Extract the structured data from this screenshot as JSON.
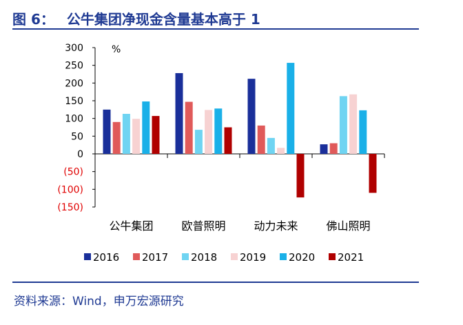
{
  "figure": {
    "label": "图 6：",
    "title": "公牛集团净现金含量基本高于 1",
    "source": "资料来源：Wind，申万宏源研究"
  },
  "colors": {
    "rule": "#1f3a93",
    "negative_tick": "#e00000",
    "series": [
      "#1a2f9a",
      "#e05a5a",
      "#6fd4f2",
      "#f7d2d2",
      "#1ab0e8",
      "#b00000"
    ]
  },
  "chart_data": {
    "type": "bar",
    "categories": [
      "公牛集团",
      "欧普照明",
      "动力未来",
      "佛山照明"
    ],
    "series": [
      {
        "name": "2016",
        "values": [
          125,
          228,
          212,
          27
        ]
      },
      {
        "name": "2017",
        "values": [
          90,
          147,
          80,
          30
        ]
      },
      {
        "name": "2018",
        "values": [
          113,
          68,
          45,
          163
        ]
      },
      {
        "name": "2019",
        "values": [
          99,
          124,
          17,
          168
        ]
      },
      {
        "name": "2020",
        "values": [
          148,
          128,
          257,
          123
        ]
      },
      {
        "name": "2021",
        "values": [
          107,
          75,
          -123,
          -110
        ]
      }
    ],
    "ylim": [
      -150,
      300
    ],
    "yticks": [
      {
        "value": 300,
        "label": "300"
      },
      {
        "value": 250,
        "label": "250"
      },
      {
        "value": 200,
        "label": "200"
      },
      {
        "value": 150,
        "label": "150"
      },
      {
        "value": 100,
        "label": "100"
      },
      {
        "value": 50,
        "label": "50"
      },
      {
        "value": 0,
        "label": "0"
      },
      {
        "value": -50,
        "label": "(50)"
      },
      {
        "value": -100,
        "label": "(100)"
      },
      {
        "value": -150,
        "label": "(150)"
      }
    ],
    "unit_label": "%",
    "legend_position": "bottom",
    "grid": false
  }
}
